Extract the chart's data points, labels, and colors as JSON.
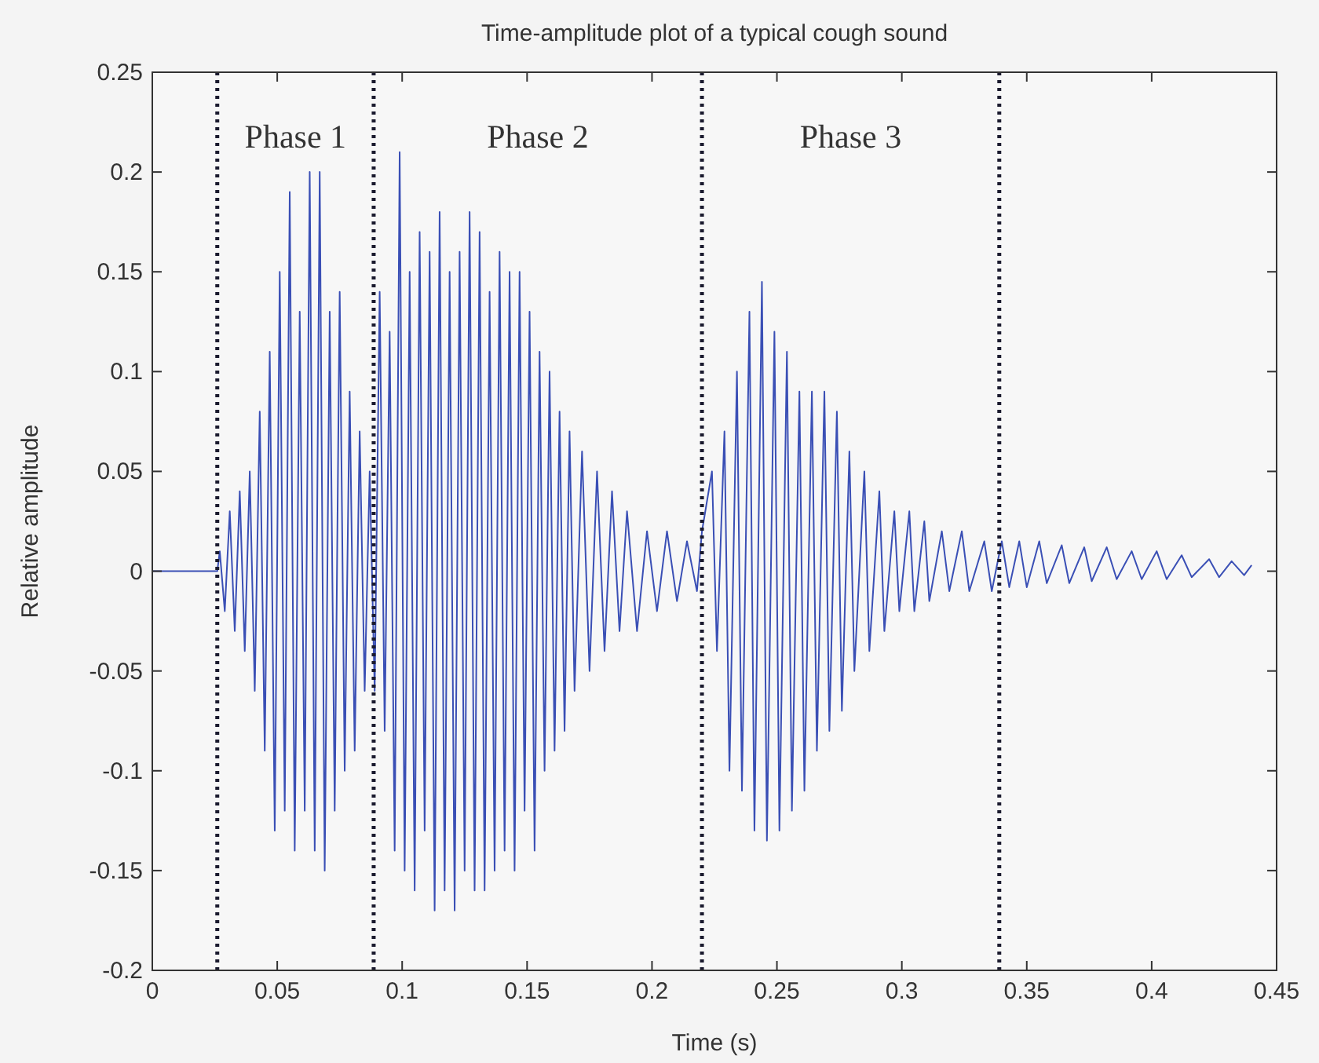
{
  "chart_data": {
    "type": "line",
    "title": "Time-amplitude plot of a typical cough sound",
    "xlabel": "Time (s)",
    "ylabel": "Relative amplitude",
    "xlim": [
      0,
      0.45
    ],
    "xticks": [
      0,
      0.05,
      0.1,
      0.15,
      0.2,
      0.25,
      0.3,
      0.35,
      0.4,
      0.45
    ],
    "ylim": [
      -0.2,
      0.25
    ],
    "yticks": [
      -0.2,
      -0.15,
      -0.1,
      -0.05,
      0,
      0.05,
      0.1,
      0.15,
      0.2,
      0.25
    ],
    "grid": false,
    "marker": "none",
    "line_style": "solid",
    "ref_lines": [
      {
        "axis": "x",
        "value": 0.026,
        "color": "#1a1a2e",
        "line_style": "dotted"
      },
      {
        "axis": "x",
        "value": 0.0886,
        "color": "#1a1a2e",
        "line_style": "dotted"
      },
      {
        "axis": "x",
        "value": 0.22,
        "color": "#1a1a2e",
        "line_style": "dotted"
      },
      {
        "axis": "x",
        "value": 0.339,
        "color": "#1a1a2e",
        "line_style": "dotted"
      }
    ],
    "annotations": [
      "Phase 1",
      "Phase 2",
      "Phase 3"
    ],
    "series": [
      {
        "color": "#3a4fb5",
        "x": [
          0,
          0.026,
          0.027,
          0.029,
          0.031,
          0.033,
          0.035,
          0.037,
          0.039,
          0.041,
          0.043,
          0.045,
          0.047,
          0.049,
          0.051,
          0.053,
          0.055,
          0.057,
          0.059,
          0.061,
          0.063,
          0.065,
          0.067,
          0.069,
          0.071,
          0.073,
          0.075,
          0.077,
          0.079,
          0.081,
          0.083,
          0.085,
          0.087,
          0.089,
          0.091,
          0.093,
          0.095,
          0.097,
          0.099,
          0.101,
          0.103,
          0.105,
          0.107,
          0.109,
          0.111,
          0.113,
          0.115,
          0.117,
          0.119,
          0.121,
          0.123,
          0.125,
          0.127,
          0.129,
          0.131,
          0.133,
          0.135,
          0.137,
          0.139,
          0.141,
          0.143,
          0.145,
          0.147,
          0.149,
          0.151,
          0.153,
          0.155,
          0.157,
          0.159,
          0.161,
          0.163,
          0.165,
          0.167,
          0.169,
          0.172,
          0.175,
          0.178,
          0.181,
          0.184,
          0.187,
          0.19,
          0.194,
          0.198,
          0.202,
          0.206,
          0.21,
          0.214,
          0.218,
          0.22,
          0.224,
          0.226,
          0.229,
          0.231,
          0.234,
          0.236,
          0.239,
          0.241,
          0.244,
          0.246,
          0.249,
          0.251,
          0.254,
          0.256,
          0.259,
          0.261,
          0.264,
          0.266,
          0.269,
          0.271,
          0.274,
          0.276,
          0.279,
          0.281,
          0.285,
          0.287,
          0.291,
          0.293,
          0.297,
          0.299,
          0.303,
          0.305,
          0.309,
          0.311,
          0.316,
          0.319,
          0.324,
          0.327,
          0.333,
          0.336,
          0.34,
          0.343,
          0.347,
          0.35,
          0.355,
          0.358,
          0.364,
          0.367,
          0.373,
          0.376,
          0.382,
          0.386,
          0.392,
          0.396,
          0.402,
          0.406,
          0.412,
          0.416,
          0.423,
          0.427,
          0.432,
          0.437,
          0.44
        ],
        "values": [
          0,
          0,
          0.01,
          -0.02,
          0.03,
          -0.03,
          0.04,
          -0.04,
          0.05,
          -0.06,
          0.08,
          -0.09,
          0.11,
          -0.13,
          0.15,
          -0.12,
          0.19,
          -0.14,
          0.13,
          -0.12,
          0.2,
          -0.14,
          0.2,
          -0.15,
          0.13,
          -0.12,
          0.14,
          -0.1,
          0.09,
          -0.09,
          0.07,
          -0.06,
          0.05,
          -0.06,
          0.14,
          -0.08,
          0.12,
          -0.14,
          0.21,
          -0.15,
          0.15,
          -0.16,
          0.17,
          -0.13,
          0.16,
          -0.17,
          0.18,
          -0.16,
          0.15,
          -0.17,
          0.16,
          -0.15,
          0.18,
          -0.16,
          0.17,
          -0.16,
          0.14,
          -0.15,
          0.16,
          -0.14,
          0.15,
          -0.15,
          0.15,
          -0.12,
          0.13,
          -0.14,
          0.11,
          -0.1,
          0.1,
          -0.09,
          0.08,
          -0.08,
          0.07,
          -0.06,
          0.06,
          -0.05,
          0.05,
          -0.04,
          0.04,
          -0.03,
          0.03,
          -0.03,
          0.02,
          -0.02,
          0.02,
          -0.015,
          0.015,
          -0.01,
          0.02,
          0.05,
          -0.04,
          0.07,
          -0.1,
          0.1,
          -0.11,
          0.13,
          -0.13,
          0.145,
          -0.135,
          0.12,
          -0.13,
          0.11,
          -0.12,
          0.09,
          -0.11,
          0.09,
          -0.09,
          0.09,
          -0.08,
          0.08,
          -0.07,
          0.06,
          -0.05,
          0.05,
          -0.04,
          0.04,
          -0.03,
          0.03,
          -0.02,
          0.03,
          -0.02,
          0.025,
          -0.015,
          0.02,
          -0.01,
          0.02,
          -0.01,
          0.015,
          -0.01,
          0.015,
          -0.008,
          0.015,
          -0.008,
          0.015,
          -0.006,
          0.013,
          -0.006,
          0.012,
          -0.005,
          0.012,
          -0.004,
          0.01,
          -0.004,
          0.01,
          -0.004,
          0.008,
          -0.003,
          0.006,
          -0.003,
          0.005,
          -0.002,
          0.003
        ]
      }
    ]
  }
}
